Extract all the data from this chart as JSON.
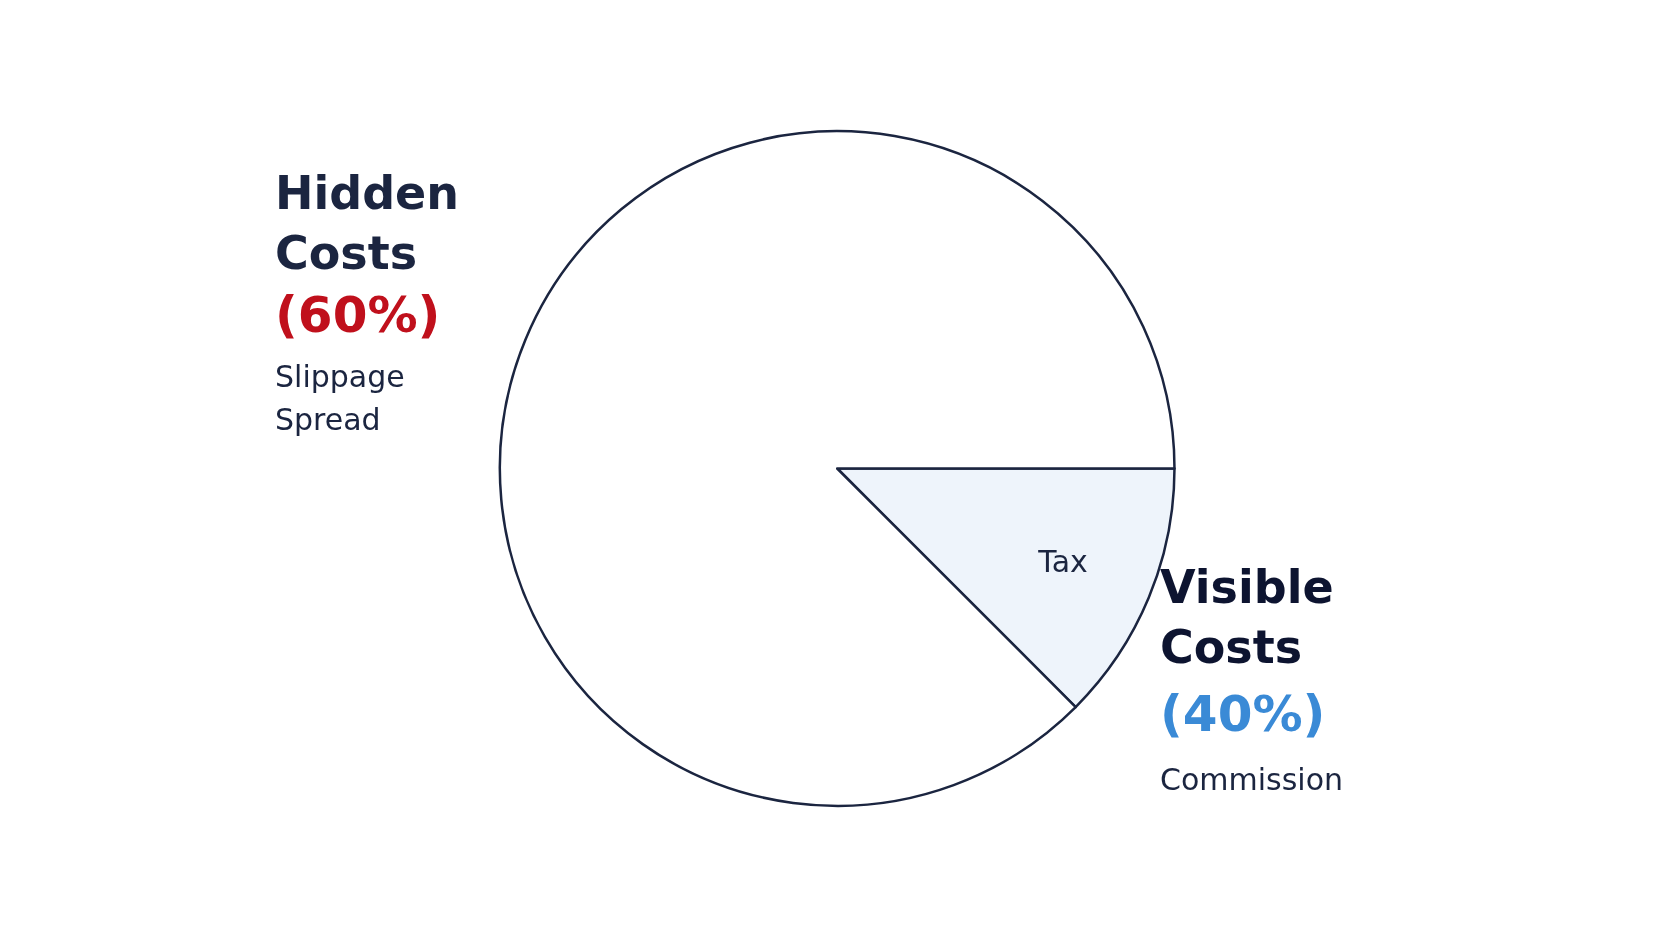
{
  "chart_data": {
    "type": "pie",
    "categories": [
      "Tax",
      null
    ],
    "values": [
      12.5,
      87.5
    ],
    "colors": [
      "#eef4fb",
      "#ffffff"
    ],
    "annotations": [
      "Hidden Costs",
      "(60%)",
      "Slippage",
      "Spread",
      "Visible Costs",
      "(40%)",
      "Commission"
    ],
    "legend": false
  }
}
